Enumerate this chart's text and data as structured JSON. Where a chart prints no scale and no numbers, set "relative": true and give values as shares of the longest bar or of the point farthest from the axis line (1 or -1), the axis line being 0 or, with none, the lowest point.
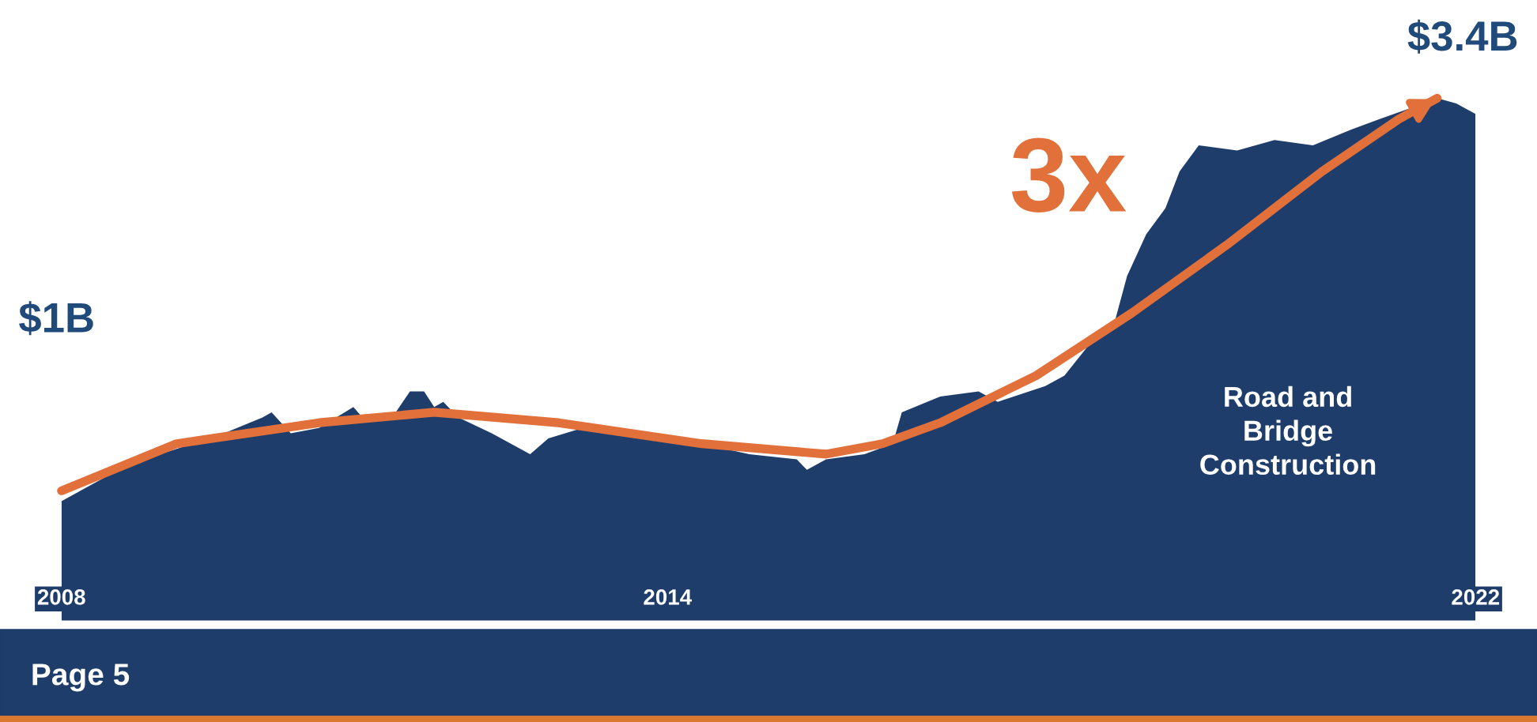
{
  "chart_data": {
    "type": "area",
    "relative": true,
    "tick_labels": "x",
    "grid": false,
    "legend": false,
    "xlim": [
      2008,
      2022
    ],
    "xticks": [
      2008,
      2014,
      2022
    ],
    "series": [
      {
        "color": "#1e3d6b",
        "x": [
          2008.0,
          2008.28,
          2008.66,
          2009.14,
          2009.61,
          2009.99,
          2010.08,
          2010.27,
          2010.55,
          2010.89,
          2010.98,
          2011.31,
          2011.45,
          2011.59,
          2011.69,
          2011.78,
          2011.93,
          2012.26,
          2012.45,
          2012.64,
          2012.82,
          2013.16,
          2013.49,
          2013.68,
          2013.96,
          2014.34,
          2014.81,
          2015.28,
          2015.38,
          2015.57,
          2015.95,
          2016.23,
          2016.32,
          2016.7,
          2017.08,
          2017.27,
          2017.74,
          2017.93,
          2018.22,
          2018.41,
          2018.55,
          2018.74,
          2018.93,
          2019.07,
          2019.26,
          2019.64,
          2020.01,
          2020.39,
          2020.77,
          2021.05,
          2021.34,
          2021.62,
          2021.81,
          2022.0
        ],
        "values": [
          0.23,
          0.26,
          0.3,
          0.33,
          0.36,
          0.39,
          0.4,
          0.36,
          0.37,
          0.41,
          0.39,
          0.4,
          0.44,
          0.44,
          0.41,
          0.42,
          0.39,
          0.36,
          0.34,
          0.32,
          0.35,
          0.37,
          0.37,
          0.36,
          0.35,
          0.34,
          0.32,
          0.31,
          0.29,
          0.31,
          0.32,
          0.34,
          0.4,
          0.43,
          0.44,
          0.42,
          0.45,
          0.47,
          0.54,
          0.56,
          0.66,
          0.74,
          0.79,
          0.86,
          0.91,
          0.9,
          0.92,
          0.91,
          0.94,
          0.96,
          0.98,
          1.0,
          0.99,
          0.97
        ]
      },
      {
        "type": "line",
        "color": "#e2703a",
        "marker": "none",
        "line_style": "solid",
        "x": [
          2008.0,
          2009.14,
          2010.55,
          2011.69,
          2012.92,
          2014.34,
          2015.57,
          2016.13,
          2016.7,
          2017.65,
          2018.6,
          2019.54,
          2020.48,
          2021.24,
          2021.62
        ],
        "values": [
          0.25,
          0.34,
          0.38,
          0.4,
          0.38,
          0.34,
          0.32,
          0.34,
          0.38,
          0.47,
          0.59,
          0.72,
          0.86,
          0.96,
          1.0
        ]
      }
    ],
    "annotations": [
      "$1B",
      "$3.4B",
      "3x",
      "Road and\nBridge\nConstruction",
      "Page 5"
    ]
  }
}
